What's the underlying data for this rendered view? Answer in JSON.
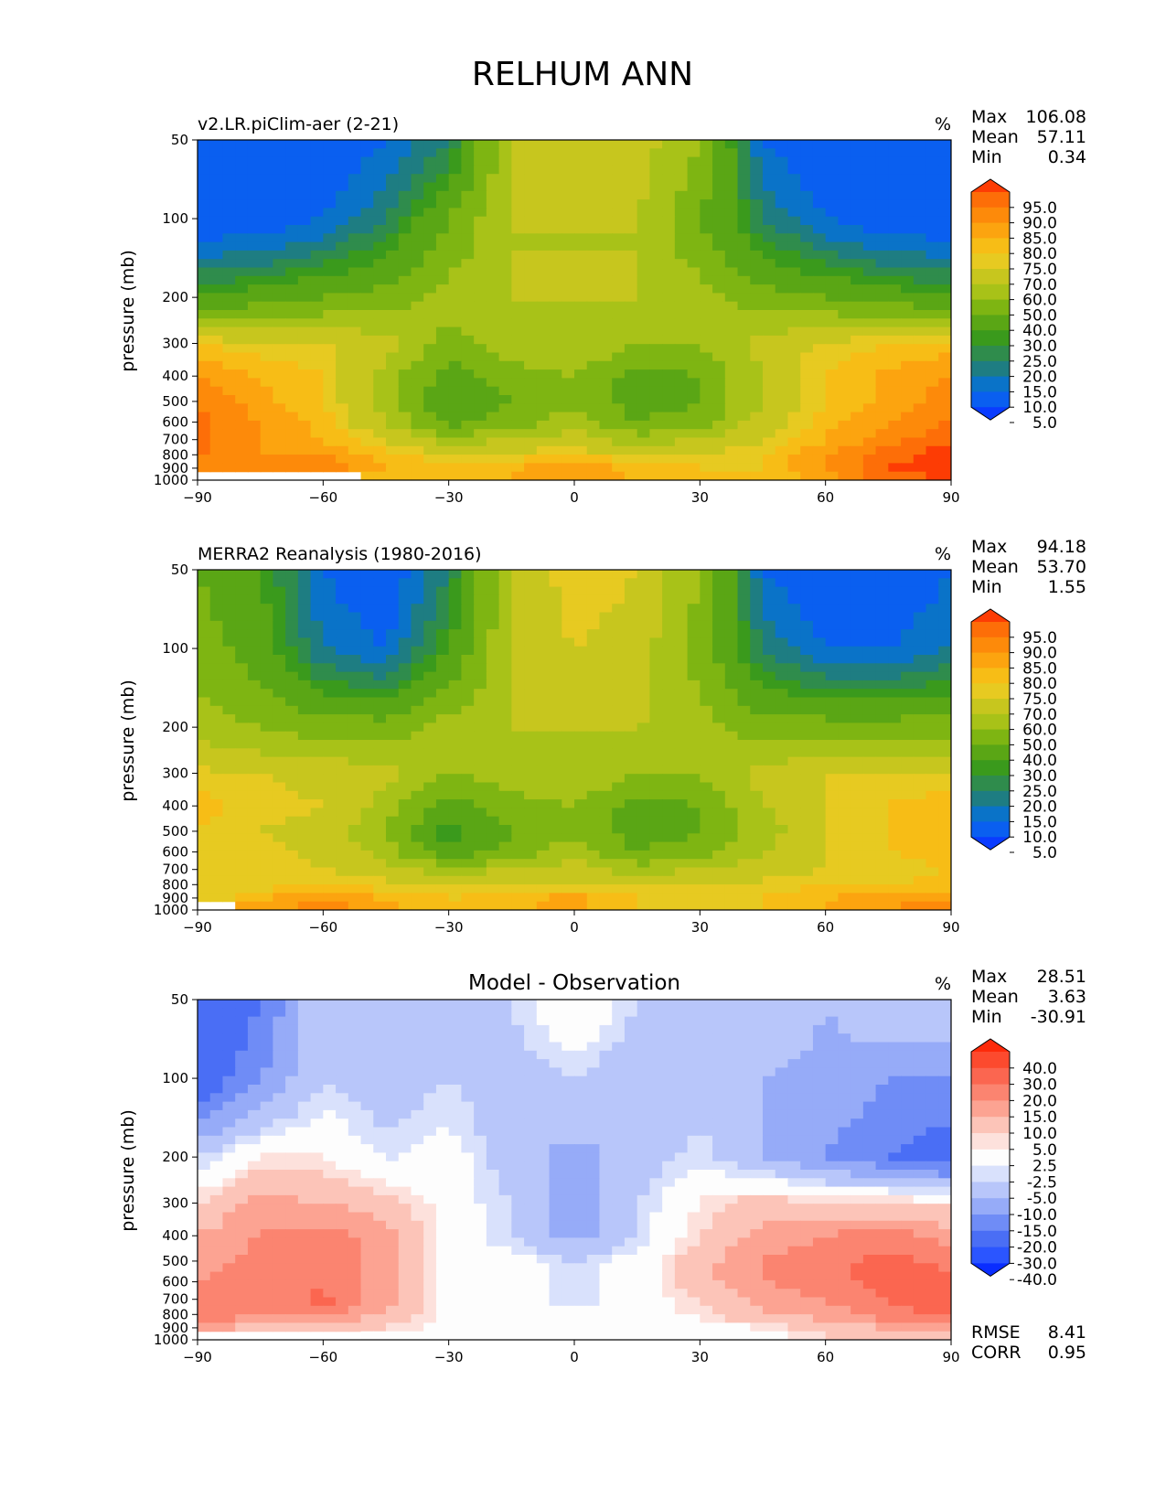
{
  "figure": {
    "title": "RELHUM ANN",
    "units": "%"
  },
  "chart_data": [
    {
      "type": "heatmap",
      "title": "v2.LR.piClim-aer (2-21)",
      "ylabel": "pressure (mb)",
      "xlabel": "",
      "xlim": [
        -90,
        90
      ],
      "ylim": [
        1000,
        50
      ],
      "xticks": [
        "−90",
        "−60",
        "−30",
        "0",
        "30",
        "60",
        "90"
      ],
      "yticks": [
        "50",
        "100",
        "200",
        "300",
        "400",
        "500",
        "600",
        "700",
        "800",
        "900",
        "1000"
      ],
      "stats": {
        "Max": "106.08",
        "Mean": "57.11",
        "Min": "0.34"
      },
      "colorbar": {
        "levels": [
          "95.0",
          "90.0",
          "85.0",
          "80.0",
          "75.0",
          "70.0",
          "60.0",
          "50.0",
          "40.0",
          "30.0",
          "25.0",
          "20.0",
          "15.0",
          "10.0",
          "5.0"
        ],
        "colors": [
          "#0a3cff",
          "#0a5ff0",
          "#0a73c8",
          "#1e7d82",
          "#2f8c4c",
          "#3a9a1c",
          "#5aa615",
          "#7eb512",
          "#a8c218",
          "#c7c61e",
          "#e7ca21",
          "#f7bd16",
          "#fca40f",
          "#fd8a0a",
          "#fd6e08",
          "#fd3c04"
        ],
        "extend": "both"
      },
      "field": [
        [
          5,
          5,
          5,
          10,
          20,
          60,
          70,
          65,
          50,
          10,
          5,
          5,
          5
        ],
        [
          5,
          5,
          10,
          20,
          40,
          60,
          60,
          60,
          40,
          20,
          10,
          5,
          5
        ],
        [
          30,
          35,
          40,
          45,
          55,
          60,
          60,
          60,
          55,
          45,
          40,
          35,
          30
        ],
        [
          75,
          72,
          72,
          65,
          45,
          55,
          60,
          50,
          50,
          65,
          72,
          75,
          78
        ],
        [
          85,
          80,
          75,
          55,
          35,
          45,
          50,
          35,
          40,
          60,
          75,
          82,
          85
        ],
        [
          90,
          82,
          75,
          55,
          30,
          40,
          48,
          35,
          40,
          60,
          75,
          82,
          88
        ],
        [
          92,
          85,
          78,
          60,
          35,
          45,
          55,
          40,
          45,
          65,
          78,
          85,
          90
        ],
        [
          92,
          85,
          80,
          70,
          55,
          60,
          65,
          55,
          60,
          70,
          80,
          88,
          95
        ],
        [
          90,
          85,
          85,
          78,
          70,
          72,
          75,
          70,
          72,
          75,
          85,
          92,
          98
        ],
        [
          85,
          88,
          90,
          80,
          75,
          80,
          85,
          78,
          75,
          75,
          85,
          95,
          98
        ],
        [
          null,
          null,
          null,
          78,
          75,
          80,
          85,
          78,
          75,
          75,
          82,
          92,
          96
        ]
      ]
    },
    {
      "type": "heatmap",
      "title": "MERRA2 Reanalysis (1980-2016)",
      "ylabel": "pressure (mb)",
      "xlabel": "",
      "xlim": [
        -90,
        90
      ],
      "ylim": [
        1000,
        50
      ],
      "xticks": [
        "−90",
        "−60",
        "−30",
        "0",
        "30",
        "60",
        "90"
      ],
      "yticks": [
        "50",
        "100",
        "200",
        "300",
        "400",
        "500",
        "600",
        "700",
        "800",
        "900",
        "1000"
      ],
      "stats": {
        "Max": "94.18",
        "Mean": "53.70",
        "Min": "1.55"
      },
      "colorbar": {
        "levels": [
          "95.0",
          "90.0",
          "85.0",
          "80.0",
          "75.0",
          "70.0",
          "60.0",
          "50.0",
          "40.0",
          "30.0",
          "25.0",
          "20.0",
          "15.0",
          "10.0",
          "5.0"
        ],
        "colors": [
          "#0a3cff",
          "#0a5ff0",
          "#0a73c8",
          "#1e7d82",
          "#2f8c4c",
          "#3a9a1c",
          "#5aa615",
          "#7eb512",
          "#a8c218",
          "#c7c61e",
          "#e7ca21",
          "#f7bd16",
          "#fca40f",
          "#fd8a0a",
          "#fd6e08",
          "#fd3c04"
        ],
        "extend": "both"
      },
      "field": [
        [
          40,
          30,
          10,
          5,
          20,
          60,
          75,
          70,
          50,
          10,
          5,
          5,
          10
        ],
        [
          45,
          35,
          15,
          10,
          30,
          60,
          70,
          65,
          45,
          20,
          10,
          10,
          15
        ],
        [
          55,
          50,
          45,
          45,
          55,
          60,
          60,
          60,
          55,
          45,
          45,
          45,
          45
        ],
        [
          72,
          70,
          68,
          65,
          50,
          55,
          60,
          50,
          50,
          65,
          70,
          72,
          72
        ],
        [
          78,
          72,
          70,
          55,
          35,
          45,
          50,
          35,
          40,
          60,
          70,
          75,
          78
        ],
        [
          75,
          70,
          68,
          50,
          25,
          40,
          48,
          35,
          40,
          55,
          70,
          75,
          78
        ],
        [
          75,
          72,
          68,
          55,
          30,
          45,
          55,
          40,
          45,
          60,
          70,
          75,
          78
        ],
        [
          75,
          72,
          70,
          65,
          55,
          60,
          65,
          55,
          60,
          65,
          70,
          72,
          75
        ],
        [
          72,
          72,
          75,
          72,
          70,
          70,
          72,
          70,
          70,
          72,
          75,
          75,
          78
        ],
        [
          70,
          80,
          85,
          80,
          75,
          78,
          82,
          75,
          72,
          75,
          80,
          82,
          85
        ],
        [
          null,
          82,
          88,
          82,
          75,
          78,
          82,
          75,
          72,
          75,
          80,
          85,
          90
        ]
      ]
    },
    {
      "type": "heatmap",
      "title": "Model - Observation",
      "ylabel": "pressure (mb)",
      "xlabel": "",
      "xlim": [
        -90,
        90
      ],
      "ylim": [
        1000,
        50
      ],
      "xticks": [
        "−90",
        "−60",
        "−30",
        "0",
        "30",
        "60",
        "90"
      ],
      "yticks": [
        "50",
        "100",
        "200",
        "300",
        "400",
        "500",
        "600",
        "700",
        "800",
        "900",
        "1000"
      ],
      "stats": {
        "Max": "28.51",
        "Mean": "3.63",
        "Min": "-30.91"
      },
      "colorbar": {
        "levels": [
          "40.0",
          "30.0",
          "20.0",
          "15.0",
          "10.0",
          "5.0",
          "2.5",
          "-2.5",
          "-5.0",
          "-10.0",
          "-15.0",
          "-20.0",
          "-30.0",
          "-40.0"
        ],
        "colors": [
          "#0a2dff",
          "#2b55ff",
          "#4a6ef5",
          "#6f8cf6",
          "#96abf8",
          "#b8c6fa",
          "#d9e1fc",
          "#fdfdfd",
          "#fde1dc",
          "#fcc4b8",
          "#fca392",
          "#fb8470",
          "#fb6650",
          "#fc4a2e",
          "#fd2a0a"
        ],
        "extend": "both"
      },
      "field": [
        [
          -30,
          -20,
          -5,
          -8,
          -8,
          -5,
          3,
          -5,
          -8,
          -5,
          -10,
          -5,
          -5
        ],
        [
          -25,
          -15,
          -5,
          -8,
          -5,
          -8,
          -5,
          -10,
          -8,
          -10,
          -12,
          -15,
          -15
        ],
        [
          -5,
          3,
          3,
          -3,
          0,
          -8,
          -12,
          -8,
          -3,
          -10,
          -15,
          -20,
          -25
        ],
        [
          5,
          12,
          10,
          8,
          0,
          -5,
          -15,
          -5,
          3,
          8,
          5,
          5,
          5
        ],
        [
          10,
          15,
          18,
          12,
          0,
          -5,
          -12,
          -5,
          5,
          12,
          15,
          18,
          12
        ],
        [
          12,
          18,
          18,
          12,
          0,
          0,
          -5,
          0,
          8,
          15,
          18,
          22,
          18
        ],
        [
          15,
          18,
          18,
          12,
          0,
          0,
          -5,
          0,
          8,
          15,
          18,
          22,
          22
        ],
        [
          18,
          15,
          22,
          12,
          0,
          0,
          -5,
          0,
          5,
          12,
          15,
          20,
          25
        ],
        [
          20,
          15,
          15,
          10,
          0,
          0,
          0,
          0,
          3,
          10,
          12,
          18,
          22
        ],
        [
          12,
          8,
          8,
          5,
          0,
          0,
          0,
          0,
          0,
          3,
          8,
          10,
          12
        ],
        [
          null,
          null,
          null,
          0,
          0,
          3,
          3,
          3,
          0,
          0,
          3,
          5,
          5
        ]
      ],
      "rmse": {
        "label": "RMSE",
        "value": "8.41"
      },
      "corr": {
        "label": "CORR",
        "value": "0.95"
      }
    }
  ]
}
